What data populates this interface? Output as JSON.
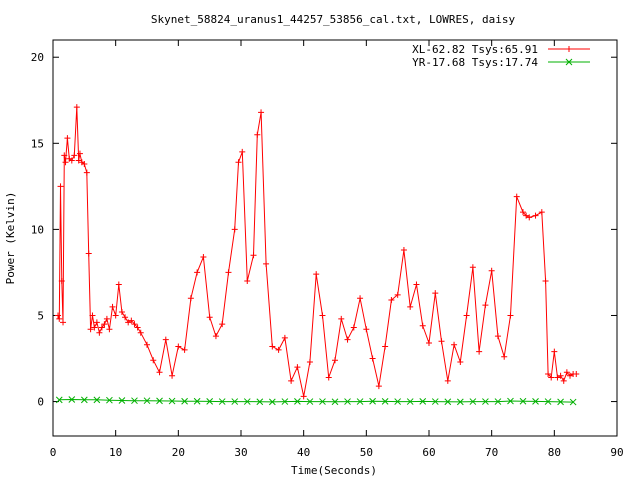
{
  "chart_data": {
    "type": "line",
    "title": "Skynet_58824_uranus1_44257_53856_cal.txt, LOWRES, daisy",
    "xlabel": "Time(Seconds)",
    "ylabel": "Power (Kelvin)",
    "xlim": [
      0,
      90
    ],
    "ylim": [
      -2,
      21
    ],
    "x_ticks": [
      "0",
      "10",
      "20",
      "30",
      "40",
      "50",
      "60",
      "70",
      "80",
      "90"
    ],
    "y_ticks": [
      "0",
      "5",
      "10",
      "15",
      "20"
    ],
    "grid": false,
    "legend_position": "top-right",
    "series": [
      {
        "name": "XL-62.82 Tsys:65.91",
        "color": "#ff0000",
        "marker": "plus",
        "x": [
          0.8,
          1.0,
          1.2,
          1.4,
          1.6,
          1.8,
          2.0,
          2.3,
          2.6,
          3.0,
          3.4,
          3.8,
          4.1,
          4.3,
          4.6,
          5.0,
          5.4,
          5.7,
          6.0,
          6.3,
          6.6,
          7.0,
          7.4,
          7.8,
          8.2,
          8.6,
          9.0,
          9.5,
          10.0,
          10.5,
          11.0,
          11.5,
          12.0,
          12.5,
          13.0,
          13.5,
          14.0,
          15.0,
          16.0,
          17.0,
          18.0,
          19.0,
          20.0,
          21.0,
          22.0,
          23.0,
          24.0,
          25.0,
          26.0,
          27.0,
          28.0,
          29.0,
          29.6,
          30.2,
          31.0,
          32.0,
          32.6,
          33.2,
          34.0,
          35.0,
          36.0,
          37.0,
          38.0,
          39.0,
          40.0,
          41.0,
          42.0,
          43.0,
          44.0,
          45.0,
          46.0,
          47.0,
          48.0,
          49.0,
          50.0,
          51.0,
          52.0,
          53.0,
          54.0,
          55.0,
          56.0,
          57.0,
          58.0,
          59.0,
          60.0,
          61.0,
          62.0,
          63.0,
          64.0,
          65.0,
          66.0,
          67.0,
          68.0,
          69.0,
          70.0,
          71.0,
          72.0,
          73.0,
          74.0,
          75.0,
          75.5,
          76.0,
          77.0,
          78.0,
          78.6,
          79.0,
          79.5,
          80.0,
          80.5,
          81.0,
          81.5,
          82.0,
          82.5,
          83.0,
          83.5
        ],
        "y": [
          5.0,
          4.8,
          12.5,
          7.0,
          4.6,
          14.3,
          13.9,
          15.3,
          14.1,
          14.0,
          14.3,
          17.1,
          14.0,
          14.4,
          13.9,
          13.8,
          13.3,
          8.6,
          4.2,
          5.0,
          4.3,
          4.6,
          4.0,
          4.3,
          4.5,
          4.8,
          4.2,
          5.5,
          5.0,
          6.8,
          5.2,
          4.9,
          4.6,
          4.7,
          4.5,
          4.3,
          4.0,
          3.3,
          2.4,
          1.7,
          3.6,
          1.5,
          3.2,
          3.0,
          6.0,
          7.5,
          8.4,
          4.9,
          3.8,
          4.5,
          7.5,
          10.0,
          13.9,
          14.5,
          7.0,
          8.5,
          15.5,
          16.8,
          8.0,
          3.2,
          3.0,
          3.7,
          1.2,
          2.0,
          0.3,
          2.3,
          7.4,
          5.0,
          1.4,
          2.4,
          4.8,
          3.6,
          4.3,
          6.0,
          4.2,
          2.5,
          0.9,
          3.2,
          5.9,
          6.2,
          8.8,
          5.5,
          6.8,
          4.4,
          3.4,
          6.3,
          3.5,
          1.2,
          3.3,
          2.3,
          5.0,
          7.8,
          2.9,
          5.6,
          7.6,
          3.8,
          2.6,
          5.0,
          11.9,
          11.0,
          10.8,
          10.7,
          10.8,
          11.0,
          7.0,
          1.6,
          1.4,
          2.9,
          1.4,
          1.5,
          1.2,
          1.7,
          1.5,
          1.6,
          1.6
        ]
      },
      {
        "name": "YR-17.68 Tsys:17.74",
        "color": "#00b000",
        "marker": "cross",
        "x": [
          1,
          3,
          5,
          7,
          9,
          11,
          13,
          15,
          17,
          19,
          21,
          23,
          25,
          27,
          29,
          31,
          33,
          35,
          37,
          39,
          41,
          43,
          45,
          47,
          49,
          51,
          53,
          55,
          57,
          59,
          61,
          63,
          65,
          67,
          69,
          71,
          73,
          75,
          77,
          79,
          81,
          83
        ],
        "y": [
          0.1,
          0.12,
          0.1,
          0.1,
          0.08,
          0.06,
          0.05,
          0.05,
          0.04,
          0.03,
          0.02,
          0.02,
          0.01,
          0.0,
          0.0,
          0.0,
          -0.01,
          -0.02,
          0.0,
          0.01,
          0.0,
          0.0,
          -0.01,
          0.0,
          0.0,
          0.02,
          0.01,
          0.0,
          0.0,
          0.01,
          0.0,
          -0.01,
          -0.02,
          0.0,
          0.0,
          0.0,
          0.03,
          0.02,
          0.01,
          0.0,
          -0.02,
          -0.03
        ]
      }
    ]
  }
}
